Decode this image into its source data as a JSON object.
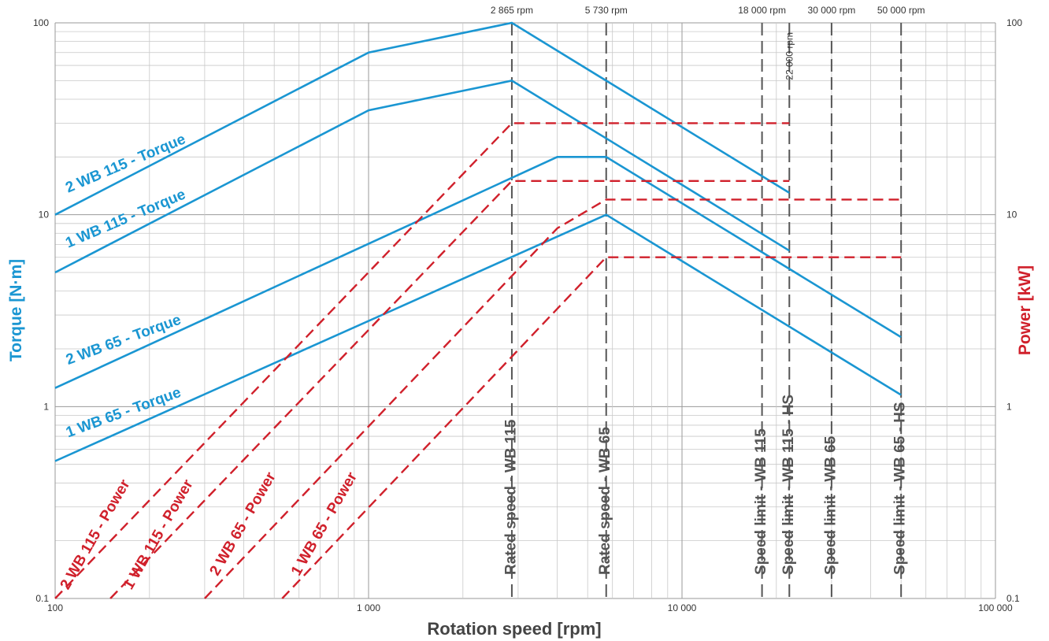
{
  "chart_data": {
    "type": "line",
    "xscale": "log",
    "yscale": "log",
    "grid": true,
    "xlabel": "Rotation speed [rpm]",
    "ylabel_left": "Torque [N·m]",
    "ylabel_right": "Power [kW]",
    "xlim": [
      100,
      100000
    ],
    "ylim": [
      0.1,
      100
    ],
    "x_ticks": [
      {
        "value": 100,
        "label": "100"
      },
      {
        "value": 1000,
        "label": "1 000"
      },
      {
        "value": 10000,
        "label": "10 000"
      },
      {
        "value": 100000,
        "label": "100 000"
      }
    ],
    "y_ticks_left": [
      {
        "value": 0.1,
        "label": "0.1"
      },
      {
        "value": 1,
        "label": "1"
      },
      {
        "value": 10,
        "label": "10"
      },
      {
        "value": 100,
        "label": "100"
      }
    ],
    "y_ticks_right": [
      {
        "value": 0.1,
        "label": "0.1"
      },
      {
        "value": 1,
        "label": "1"
      },
      {
        "value": 10,
        "label": "10"
      },
      {
        "value": 100,
        "label": "100"
      }
    ],
    "colors": {
      "torque": "#1a96d2",
      "power": "#d0202b",
      "reference": "#555555",
      "grid_major": "#9a9a9a",
      "grid_minor": "#c8c8c8"
    },
    "series": [
      {
        "name": "2 WB 115 - Torque",
        "kind": "torque",
        "x": [
          100,
          1000,
          2865,
          5730,
          22000
        ],
        "y": [
          10,
          70,
          100,
          50,
          13
        ]
      },
      {
        "name": "1 WB 115 - Torque",
        "kind": "torque",
        "x": [
          100,
          1000,
          2865,
          5730,
          22000
        ],
        "y": [
          5,
          35,
          50,
          25,
          6.5
        ]
      },
      {
        "name": "2 WB 65 - Torque",
        "kind": "torque",
        "x": [
          100,
          4000,
          5730,
          50000
        ],
        "y": [
          1.25,
          20,
          20,
          2.3
        ]
      },
      {
        "name": "1 WB 65 - Torque",
        "kind": "torque",
        "x": [
          100,
          5730,
          50000
        ],
        "y": [
          0.52,
          10,
          1.15
        ]
      },
      {
        "name": "2 WB 115 - Power",
        "kind": "power",
        "x": [
          100,
          2865,
          22000
        ],
        "y": [
          0.1,
          30,
          30
        ]
      },
      {
        "name": "1 WB 115 - Power",
        "kind": "power",
        "x": [
          150,
          2865,
          22000
        ],
        "y": [
          0.1,
          15,
          15
        ]
      },
      {
        "name": "2 WB 65 - Power",
        "kind": "power",
        "x": [
          300,
          4000,
          5730,
          50000
        ],
        "y": [
          0.1,
          8.5,
          12,
          12
        ]
      },
      {
        "name": "1 WB 65 - Power",
        "kind": "power",
        "x": [
          530,
          5730,
          50000
        ],
        "y": [
          0.1,
          6,
          6
        ]
      }
    ],
    "series_labels": [
      {
        "text": "2 WB 115 - Torque",
        "kind": "torque",
        "x": 110,
        "y": 13,
        "angle": -23
      },
      {
        "text": "1 WB 115 - Torque",
        "kind": "torque",
        "x": 110,
        "y": 6.7,
        "angle": -23
      },
      {
        "text": "2 WB 65 - Torque",
        "kind": "torque",
        "x": 110,
        "y": 1.65,
        "angle": -20
      },
      {
        "text": "1 WB 65 - Torque",
        "kind": "torque",
        "x": 110,
        "y": 0.69,
        "angle": -20
      },
      {
        "text": "2 WB 115 - Power",
        "kind": "power",
        "x": 110,
        "y": 0.11,
        "angle": -60
      },
      {
        "text": "1 WB 115 - Power",
        "kind": "power",
        "x": 175,
        "y": 0.11,
        "angle": -60
      },
      {
        "text": "2 WB 65 - Power",
        "kind": "power",
        "x": 330,
        "y": 0.13,
        "angle": -60
      },
      {
        "text": "1 WB 65 - Power",
        "kind": "power",
        "x": 600,
        "y": 0.13,
        "angle": -60
      }
    ],
    "reference_lines": [
      {
        "x": 2865,
        "top_label": "2 865 rpm",
        "label": "Rated speed - WB 115"
      },
      {
        "x": 5730,
        "top_label": "5 730 rpm",
        "label": "Rated speed - WB 65"
      },
      {
        "x": 18000,
        "top_label": "18 000 rpm",
        "label": "Speed limit - WB 115"
      },
      {
        "x": 22000,
        "top_label": "22 000 rpm",
        "label": "Speed limit - WB 115 - HS",
        "top_label_rotated": true
      },
      {
        "x": 30000,
        "top_label": "30 000 rpm",
        "label": "Speed limit - WB 65"
      },
      {
        "x": 50000,
        "top_label": "50 000 rpm",
        "label": "Speed limit - WB 65 - HS"
      }
    ]
  }
}
